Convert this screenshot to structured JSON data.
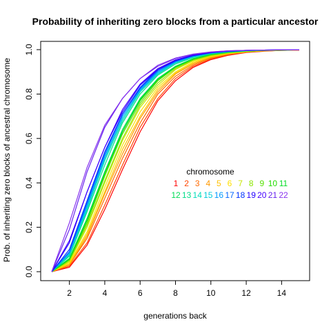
{
  "chart_data": {
    "type": "line",
    "title": "Probability of inheriting zero blocks from a particular ancestor",
    "xlabel": "generations back",
    "ylabel": "Prob. of inheriting zero blocks of ancestral chromosome",
    "x": [
      1,
      2,
      3,
      4,
      5,
      6,
      7,
      8,
      9,
      10,
      11,
      12,
      13,
      14,
      15
    ],
    "xlim": [
      1,
      15
    ],
    "ylim": [
      0,
      1
    ],
    "xticks": [
      2,
      4,
      6,
      8,
      10,
      12,
      14
    ],
    "yticks": [
      0.0,
      0.2,
      0.4,
      0.6,
      0.8,
      1.0
    ],
    "ytick_labels": [
      "0.0",
      "0.2",
      "0.4",
      "0.6",
      "0.8",
      "1.0"
    ],
    "grid": false,
    "legend": {
      "title": "chromosome",
      "placement": "center-right",
      "row1": [
        "1",
        "2",
        "3",
        "4",
        "5",
        "6",
        "7",
        "8",
        "9",
        "10",
        "11"
      ],
      "row2": [
        "12",
        "13",
        "14",
        "15",
        "16",
        "17",
        "18",
        "19",
        "20",
        "21",
        "22"
      ]
    },
    "series": [
      {
        "name": "1",
        "color": "#FF0000",
        "values": [
          0,
          0.02,
          0.12,
          0.28,
          0.46,
          0.63,
          0.77,
          0.86,
          0.92,
          0.955,
          0.975,
          0.987,
          0.993,
          0.997,
          0.998
        ]
      },
      {
        "name": "2",
        "color": "#FF4500",
        "values": [
          0,
          0.025,
          0.13,
          0.3,
          0.48,
          0.65,
          0.78,
          0.87,
          0.925,
          0.958,
          0.977,
          0.988,
          0.994,
          0.997,
          0.998
        ]
      },
      {
        "name": "3",
        "color": "#FF6A00",
        "values": [
          0,
          0.03,
          0.15,
          0.33,
          0.51,
          0.67,
          0.8,
          0.88,
          0.93,
          0.962,
          0.979,
          0.989,
          0.994,
          0.997,
          0.998
        ]
      },
      {
        "name": "4",
        "color": "#FF9900",
        "values": [
          0,
          0.03,
          0.16,
          0.35,
          0.53,
          0.69,
          0.81,
          0.89,
          0.935,
          0.965,
          0.981,
          0.99,
          0.995,
          0.997,
          0.998
        ]
      },
      {
        "name": "5",
        "color": "#FFC000",
        "values": [
          0,
          0.035,
          0.17,
          0.36,
          0.55,
          0.7,
          0.82,
          0.895,
          0.94,
          0.967,
          0.982,
          0.99,
          0.995,
          0.998,
          0.999
        ]
      },
      {
        "name": "6",
        "color": "#FFE000",
        "values": [
          0,
          0.04,
          0.18,
          0.38,
          0.57,
          0.72,
          0.83,
          0.9,
          0.945,
          0.97,
          0.984,
          0.991,
          0.995,
          0.998,
          0.999
        ]
      },
      {
        "name": "7",
        "color": "#C8E600",
        "values": [
          0,
          0.045,
          0.2,
          0.4,
          0.59,
          0.74,
          0.84,
          0.91,
          0.95,
          0.972,
          0.985,
          0.992,
          0.996,
          0.998,
          0.999
        ]
      },
      {
        "name": "8",
        "color": "#8CE600",
        "values": [
          0,
          0.05,
          0.21,
          0.41,
          0.6,
          0.75,
          0.85,
          0.915,
          0.953,
          0.975,
          0.986,
          0.993,
          0.996,
          0.998,
          0.999
        ]
      },
      {
        "name": "9",
        "color": "#55E000",
        "values": [
          0,
          0.055,
          0.22,
          0.43,
          0.62,
          0.76,
          0.86,
          0.92,
          0.956,
          0.977,
          0.988,
          0.994,
          0.997,
          0.998,
          0.999
        ]
      },
      {
        "name": "10",
        "color": "#22DD00",
        "values": [
          0,
          0.055,
          0.23,
          0.44,
          0.63,
          0.77,
          0.865,
          0.922,
          0.958,
          0.978,
          0.988,
          0.994,
          0.997,
          0.998,
          0.999
        ]
      },
      {
        "name": "11",
        "color": "#00DD22",
        "values": [
          0,
          0.06,
          0.24,
          0.45,
          0.63,
          0.775,
          0.87,
          0.925,
          0.96,
          0.979,
          0.989,
          0.994,
          0.997,
          0.998,
          0.999
        ]
      },
      {
        "name": "12",
        "color": "#00DD55",
        "values": [
          0,
          0.06,
          0.24,
          0.45,
          0.64,
          0.78,
          0.87,
          0.925,
          0.96,
          0.979,
          0.989,
          0.994,
          0.997,
          0.998,
          0.999
        ]
      },
      {
        "name": "13",
        "color": "#00DD88",
        "values": [
          0,
          0.07,
          0.27,
          0.48,
          0.67,
          0.8,
          0.885,
          0.935,
          0.965,
          0.982,
          0.99,
          0.995,
          0.997,
          0.999,
          0.999
        ]
      },
      {
        "name": "14",
        "color": "#00DDBB",
        "values": [
          0,
          0.075,
          0.28,
          0.5,
          0.68,
          0.81,
          0.89,
          0.94,
          0.967,
          0.983,
          0.991,
          0.995,
          0.998,
          0.999,
          0.999
        ]
      },
      {
        "name": "15",
        "color": "#00CCDD",
        "values": [
          0,
          0.08,
          0.29,
          0.51,
          0.69,
          0.815,
          0.895,
          0.942,
          0.969,
          0.984,
          0.992,
          0.996,
          0.998,
          0.999,
          0.999
        ]
      },
      {
        "name": "16",
        "color": "#0099FF",
        "values": [
          0,
          0.085,
          0.3,
          0.52,
          0.7,
          0.82,
          0.9,
          0.945,
          0.97,
          0.985,
          0.992,
          0.996,
          0.998,
          0.999,
          0.999
        ]
      },
      {
        "name": "17",
        "color": "#0066FF",
        "values": [
          0,
          0.09,
          0.31,
          0.53,
          0.71,
          0.825,
          0.905,
          0.948,
          0.972,
          0.986,
          0.993,
          0.996,
          0.998,
          0.999,
          0.999
        ]
      },
      {
        "name": "18",
        "color": "#0033FF",
        "values": [
          0,
          0.1,
          0.32,
          0.54,
          0.71,
          0.83,
          0.91,
          0.95,
          0.973,
          0.986,
          0.993,
          0.996,
          0.998,
          0.999,
          0.999
        ]
      },
      {
        "name": "19",
        "color": "#2200FF",
        "values": [
          0,
          0.13,
          0.36,
          0.56,
          0.72,
          0.84,
          0.91,
          0.952,
          0.975,
          0.987,
          0.994,
          0.997,
          0.998,
          0.999,
          0.999
        ]
      },
      {
        "name": "20",
        "color": "#4400FF",
        "values": [
          0,
          0.14,
          0.36,
          0.56,
          0.73,
          0.845,
          0.915,
          0.954,
          0.976,
          0.988,
          0.994,
          0.997,
          0.998,
          0.999,
          0.999
        ]
      },
      {
        "name": "21",
        "color": "#6622EE",
        "values": [
          0,
          0.19,
          0.45,
          0.65,
          0.78,
          0.87,
          0.925,
          0.96,
          0.979,
          0.989,
          0.995,
          0.997,
          0.998,
          0.999,
          0.999
        ]
      },
      {
        "name": "22",
        "color": "#8833EE",
        "values": [
          0,
          0.22,
          0.47,
          0.66,
          0.78,
          0.87,
          0.93,
          0.962,
          0.98,
          0.99,
          0.995,
          0.997,
          0.998,
          0.999,
          0.999
        ]
      }
    ]
  }
}
